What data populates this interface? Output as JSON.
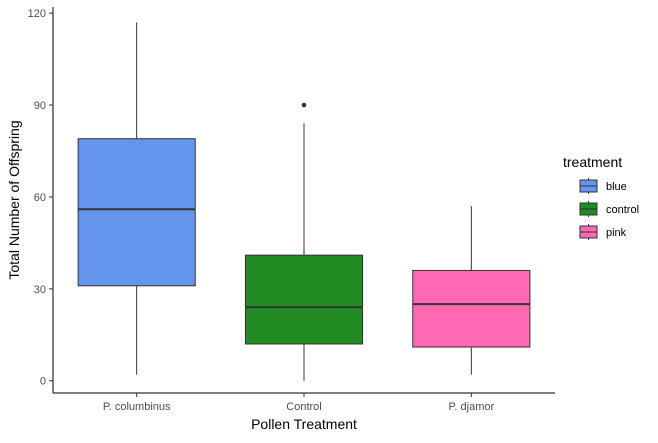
{
  "chart_data": {
    "type": "boxplot",
    "xlabel": "Pollen Treatment",
    "ylabel": "Total Number of Offspring",
    "categories": [
      "P. columbinus",
      "Control",
      "P. djamor"
    ],
    "ylim": [
      -4,
      122
    ],
    "yticks": [
      0,
      30,
      60,
      90,
      120
    ],
    "grid": false,
    "legend": {
      "title": "treatment",
      "position": "right",
      "entries": [
        "blue",
        "control",
        "pink"
      ]
    },
    "series": [
      {
        "name": "blue",
        "category": "P. columbinus",
        "color": "#6495ED",
        "whisker_low": 2,
        "q1": 31,
        "median": 56,
        "q3": 79,
        "whisker_high": 117,
        "outliers": []
      },
      {
        "name": "control",
        "category": "Control",
        "color": "#228B22",
        "whisker_low": 0,
        "q1": 12,
        "median": 24,
        "q3": 41,
        "whisker_high": 84,
        "outliers": [
          90
        ]
      },
      {
        "name": "pink",
        "category": "P. djamor",
        "color": "#FF69B4",
        "whisker_low": 2,
        "q1": 11,
        "median": 25,
        "q3": 36,
        "whisker_high": 57,
        "outliers": []
      }
    ]
  }
}
